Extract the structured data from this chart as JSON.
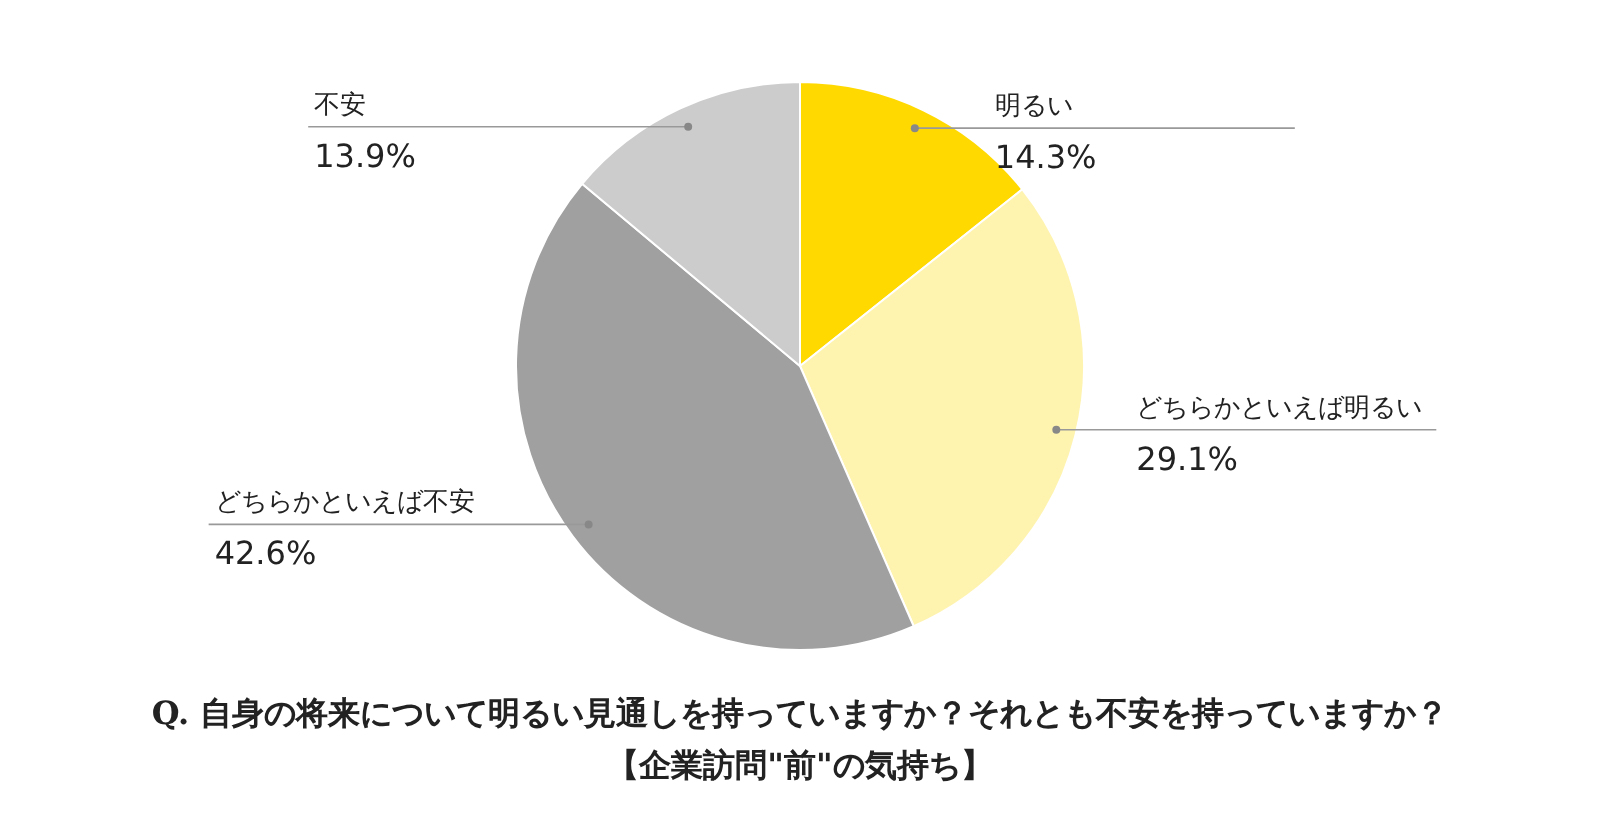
{
  "chart_data": {
    "type": "pie",
    "title": "Q. 自身の将来について明るい見通しを持っていますか？それとも不安を持っていますか？",
    "subtitle": "【企業訪問\"前\"の気持ち】",
    "categories": [
      "明るい",
      "どちらかといえば明るい",
      "どちらかといえば不安",
      "不安"
    ],
    "values": [
      14.3,
      29.1,
      42.6,
      13.9
    ],
    "value_labels": [
      "14.3%",
      "29.1%",
      "42.6%",
      "13.9%"
    ],
    "colors": [
      "#ffd900",
      "#fff3b0",
      "#a0a0a0",
      "#cccccc"
    ]
  }
}
